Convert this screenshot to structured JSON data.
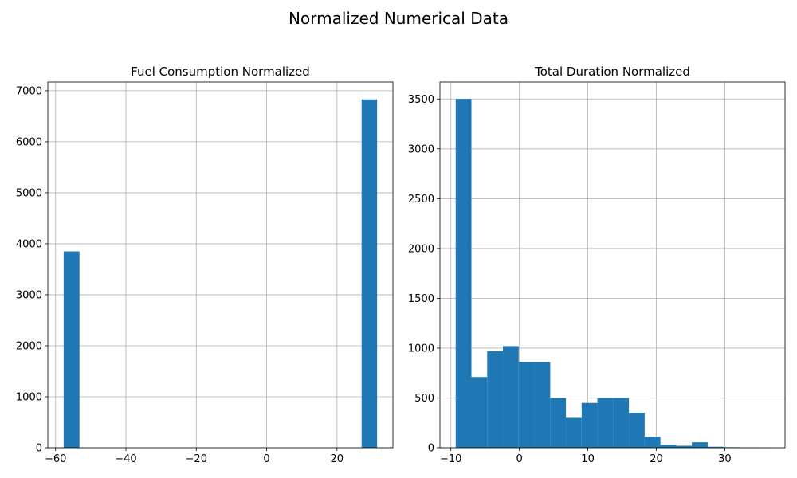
{
  "figure": {
    "suptitle": "Normalized Numerical Data"
  },
  "colors": {
    "bar": "#1f77b4",
    "grid": "#b0b0b0",
    "axis": "#000000",
    "background": "#ffffff"
  },
  "chart_data": [
    {
      "type": "bar",
      "subtype": "histogram",
      "title": "Fuel Consumption Normalized",
      "xlabel": "",
      "ylabel": "",
      "xlim": [
        -62.2,
        35.9
      ],
      "ylim": [
        0,
        7170
      ],
      "xticks": [
        -60,
        -40,
        -20,
        0,
        20
      ],
      "xtick_labels": [
        "−60",
        "−40",
        "−20",
        "0",
        "20"
      ],
      "yticks": [
        0,
        1000,
        2000,
        3000,
        4000,
        5000,
        6000,
        7000
      ],
      "ytick_labels": [
        "0",
        "1000",
        "2000",
        "3000",
        "4000",
        "5000",
        "6000",
        "7000"
      ],
      "grid": true,
      "bins": [
        {
          "x0": -57.7,
          "x1": -53.2,
          "count": 3850
        },
        {
          "x0": 27.0,
          "x1": 31.4,
          "count": 6830
        }
      ]
    },
    {
      "type": "bar",
      "subtype": "histogram",
      "title": "Total Duration Normalized",
      "xlabel": "",
      "ylabel": "",
      "xlim": [
        -11.6,
        38.8
      ],
      "ylim": [
        0,
        3670
      ],
      "xticks": [
        -10,
        0,
        10,
        20,
        30
      ],
      "xtick_labels": [
        "−10",
        "0",
        "10",
        "20",
        "30"
      ],
      "yticks": [
        0,
        500,
        1000,
        1500,
        2000,
        2500,
        3000,
        3500
      ],
      "ytick_labels": [
        "0",
        "500",
        "1000",
        "1500",
        "2000",
        "2500",
        "3000",
        "3500"
      ],
      "grid": true,
      "bins": [
        {
          "x0": -9.3,
          "x1": -7.0,
          "count": 3500
        },
        {
          "x0": -7.0,
          "x1": -4.7,
          "count": 710
        },
        {
          "x0": -4.7,
          "x1": -2.4,
          "count": 970
        },
        {
          "x0": -2.4,
          "x1": -0.1,
          "count": 1020
        },
        {
          "x0": -0.1,
          "x1": 2.2,
          "count": 860
        },
        {
          "x0": 2.2,
          "x1": 4.5,
          "count": 860
        },
        {
          "x0": 4.5,
          "x1": 6.8,
          "count": 500
        },
        {
          "x0": 6.8,
          "x1": 9.1,
          "count": 300
        },
        {
          "x0": 9.1,
          "x1": 11.4,
          "count": 450
        },
        {
          "x0": 11.4,
          "x1": 13.7,
          "count": 500
        },
        {
          "x0": 13.7,
          "x1": 16.0,
          "count": 500
        },
        {
          "x0": 16.0,
          "x1": 18.3,
          "count": 350
        },
        {
          "x0": 18.3,
          "x1": 20.6,
          "count": 110
        },
        {
          "x0": 20.6,
          "x1": 22.9,
          "count": 30
        },
        {
          "x0": 22.9,
          "x1": 25.2,
          "count": 20
        },
        {
          "x0": 25.2,
          "x1": 27.5,
          "count": 55
        },
        {
          "x0": 27.5,
          "x1": 29.8,
          "count": 10
        },
        {
          "x0": 29.8,
          "x1": 32.1,
          "count": 5
        },
        {
          "x0": 32.1,
          "x1": 34.4,
          "count": 2
        },
        {
          "x0": 34.4,
          "x1": 36.7,
          "count": 1
        }
      ]
    }
  ]
}
